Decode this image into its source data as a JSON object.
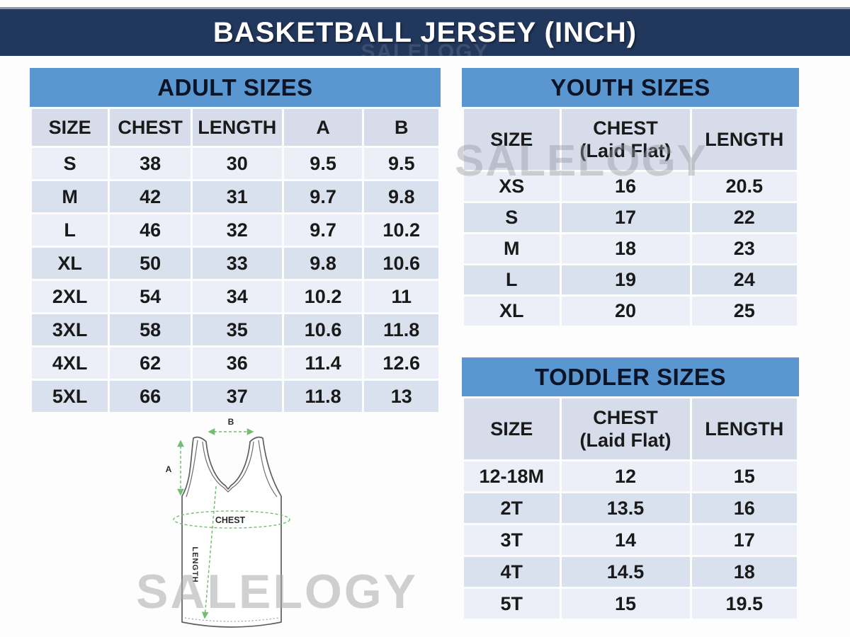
{
  "page": {
    "title": "BASKETBALL JERSEY (INCH)",
    "watermark": "SALELOGY"
  },
  "colors": {
    "navy_bar": "#22375c",
    "table_header_blue": "#5a96cf",
    "column_header_bg": "#d6dcea",
    "row_light": "#eceff7",
    "row_dark": "#d9e1ef",
    "measure_green": "#72bd72"
  },
  "adult": {
    "title": "ADULT SIZES",
    "columns": [
      "SIZE",
      "CHEST",
      "LENGTH",
      "A",
      "B"
    ],
    "rows": [
      [
        "S",
        "38",
        "30",
        "9.5",
        "9.5"
      ],
      [
        "M",
        "42",
        "31",
        "9.7",
        "9.8"
      ],
      [
        "L",
        "46",
        "32",
        "9.7",
        "10.2"
      ],
      [
        "XL",
        "50",
        "33",
        "9.8",
        "10.6"
      ],
      [
        "2XL",
        "54",
        "34",
        "10.2",
        "11"
      ],
      [
        "3XL",
        "58",
        "35",
        "10.6",
        "11.8"
      ],
      [
        "4XL",
        "62",
        "36",
        "11.4",
        "12.6"
      ],
      [
        "5XL",
        "66",
        "37",
        "11.8",
        "13"
      ]
    ]
  },
  "youth": {
    "title": "YOUTH SIZES",
    "header": {
      "size": "SIZE",
      "chest_line1": "CHEST",
      "chest_line2": "(Laid Flat)",
      "length": "LENGTH"
    },
    "rows": [
      [
        "XS",
        "16",
        "20.5"
      ],
      [
        "S",
        "17",
        "22"
      ],
      [
        "M",
        "18",
        "23"
      ],
      [
        "L",
        "19",
        "24"
      ],
      [
        "XL",
        "20",
        "25"
      ]
    ]
  },
  "toddler": {
    "title": "TODDLER SIZES",
    "header": {
      "size": "SIZE",
      "chest_line1": "CHEST",
      "chest_line2": "(Laid Flat)",
      "length": "LENGTH"
    },
    "rows": [
      [
        "12-18M",
        "12",
        "15"
      ],
      [
        "2T",
        "13.5",
        "16"
      ],
      [
        "3T",
        "14",
        "17"
      ],
      [
        "4T",
        "14.5",
        "18"
      ],
      [
        "5T",
        "15",
        "19.5"
      ]
    ]
  },
  "diagram": {
    "a_label": "A",
    "b_label": "B",
    "chest_label": "CHEST",
    "length_label": "LENGTH"
  }
}
